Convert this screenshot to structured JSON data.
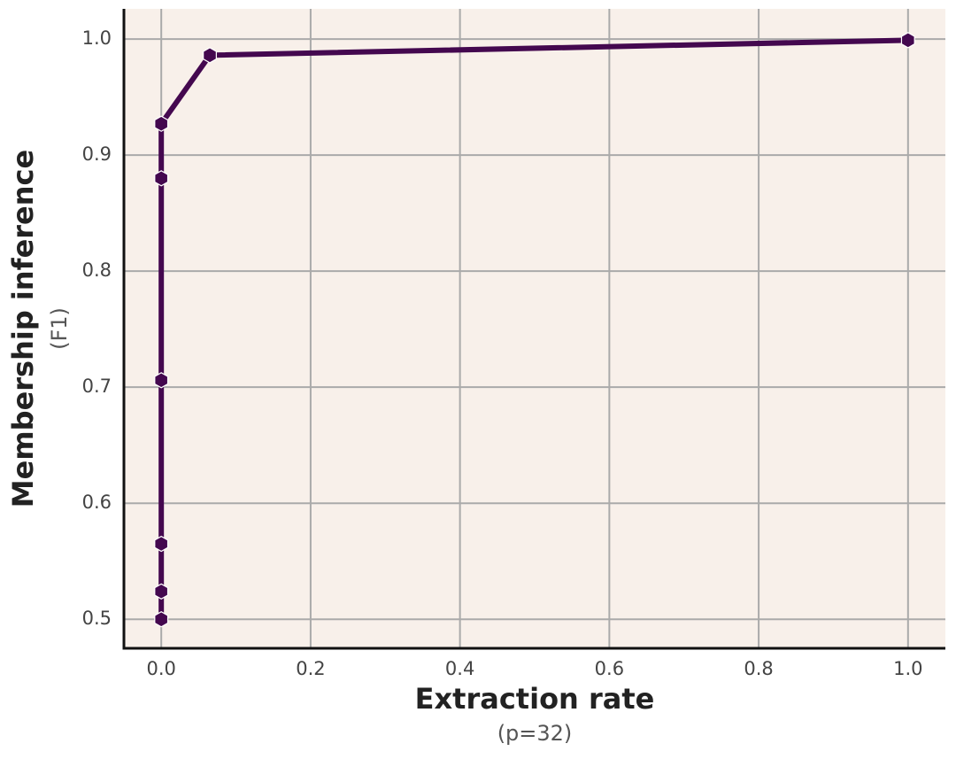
{
  "chart_data": {
    "type": "line",
    "x_label": "Extraction rate",
    "x_sublabel": "(p=32)",
    "y_label": "Membership inference",
    "y_sublabel": "(F1)",
    "x": [
      0,
      0,
      0,
      0,
      0,
      0,
      0.065,
      1.0
    ],
    "values": [
      0.5,
      0.524,
      0.565,
      0.706,
      0.88,
      0.927,
      0.986,
      0.999
    ],
    "color": "#44084f",
    "background": "#f8f0ea",
    "grid": true,
    "xlim": [
      -0.05,
      1.05
    ],
    "ylim": [
      0.475,
      1.026
    ],
    "xticks": [
      {
        "value": 0,
        "label": "0.0"
      },
      0.2,
      0.4,
      0.6,
      0.8,
      {
        "value": 1,
        "label": "1.0"
      }
    ],
    "yticks": [
      0.5,
      0.6,
      0.7,
      0.8,
      0.9,
      {
        "value": 1,
        "label": "1.0"
      }
    ]
  }
}
